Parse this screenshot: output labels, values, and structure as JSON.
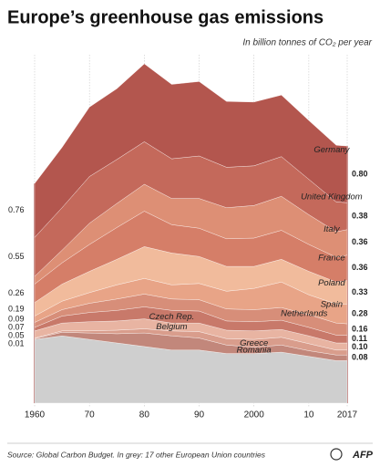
{
  "chart_data": {
    "type": "stacked_area",
    "title": "Europe’s greenhouse gas emissions",
    "subtitle": "In billion tonnes of CO₂ per year",
    "source": "Source: Global Carbon Budget. In grey: 17 other European Union countries",
    "logo": "AFP",
    "x": [
      1960,
      1965,
      1970,
      1975,
      1980,
      1985,
      1990,
      1995,
      2000,
      2005,
      2010,
      2015,
      2017
    ],
    "xlim": [
      1960,
      2017
    ],
    "xticks": [
      1960,
      {
        "value": 1970,
        "label": "70"
      },
      {
        "value": 1980,
        "label": "80"
      },
      {
        "value": 1990,
        "label": "90"
      },
      2000,
      {
        "value": 2010,
        "label": "10"
      },
      2017
    ],
    "grid": true,
    "series": [
      {
        "name": "Germany",
        "color": "#b3564e",
        "values": [
          0.76,
          0.85,
          0.98,
          1.0,
          1.1,
          1.05,
          1.05,
          0.93,
          0.9,
          0.87,
          0.83,
          0.8,
          0.8
        ],
        "value_labels": [
          "0.76",
          null,
          null,
          null,
          null,
          null,
          null,
          null,
          null,
          null,
          null,
          null,
          "0.80"
        ]
      },
      {
        "name": "United Kingdom",
        "color": "#c4695b",
        "values": [
          0.55,
          0.6,
          0.66,
          0.62,
          0.6,
          0.56,
          0.6,
          0.57,
          0.56,
          0.56,
          0.5,
          0.42,
          0.38
        ],
        "value_labels": [
          "0.55",
          null,
          null,
          null,
          null,
          null,
          null,
          null,
          null,
          null,
          null,
          null,
          "0.38"
        ]
      },
      {
        "name": "Italy",
        "color": "#dd8f75",
        "values": [
          0.11,
          0.18,
          0.3,
          0.34,
          0.38,
          0.37,
          0.42,
          0.44,
          0.46,
          0.48,
          0.42,
          0.36,
          0.36
        ],
        "value_labels": [
          null,
          null,
          null,
          null,
          null,
          null,
          null,
          null,
          null,
          null,
          null,
          null,
          "0.36"
        ]
      },
      {
        "name": "France",
        "color": "#d57e68",
        "values": [
          0.26,
          0.3,
          0.38,
          0.45,
          0.5,
          0.4,
          0.4,
          0.39,
          0.4,
          0.41,
          0.38,
          0.35,
          0.36
        ],
        "value_labels": [
          "0.26",
          null,
          null,
          null,
          null,
          null,
          null,
          null,
          null,
          null,
          null,
          null,
          "0.36"
        ]
      },
      {
        "name": "Poland",
        "color": "#f1bb9c",
        "values": [
          0.19,
          0.24,
          0.3,
          0.36,
          0.45,
          0.45,
          0.38,
          0.35,
          0.31,
          0.32,
          0.33,
          0.31,
          0.33
        ],
        "value_labels": [
          "0.19",
          null,
          null,
          null,
          null,
          null,
          null,
          null,
          null,
          null,
          null,
          null,
          "0.33"
        ]
      },
      {
        "name": "Spain",
        "color": "#e8a487",
        "values": [
          0.09,
          0.12,
          0.15,
          0.2,
          0.22,
          0.2,
          0.23,
          0.25,
          0.3,
          0.36,
          0.28,
          0.27,
          0.28
        ],
        "value_labels": [
          "0.09",
          null,
          null,
          null,
          null,
          null,
          null,
          null,
          null,
          null,
          null,
          null,
          "0.28"
        ]
      },
      {
        "name": "Netherlands",
        "color": "#d78e79",
        "values": [
          0.07,
          0.09,
          0.13,
          0.16,
          0.18,
          0.16,
          0.16,
          0.17,
          0.17,
          0.18,
          0.18,
          0.17,
          0.16
        ],
        "value_labels": [
          "0.07",
          null,
          null,
          null,
          null,
          null,
          null,
          null,
          null,
          null,
          null,
          null,
          "0.16"
        ]
      },
      {
        "name": "Czech Rep.",
        "color": "#c8796a",
        "values": [
          0.05,
          0.1,
          0.13,
          0.15,
          0.17,
          0.18,
          0.17,
          0.13,
          0.13,
          0.13,
          0.12,
          0.11,
          0.11
        ],
        "value_labels": [
          "0.05",
          null,
          null,
          null,
          null,
          null,
          null,
          null,
          null,
          null,
          null,
          null,
          "0.11"
        ]
      },
      {
        "name": "Belgium",
        "color": "#e8b4a2",
        "values": [
          0.1,
          0.11,
          0.13,
          0.13,
          0.14,
          0.11,
          0.12,
          0.12,
          0.12,
          0.11,
          0.11,
          0.1,
          0.1
        ],
        "value_labels": [
          null,
          null,
          null,
          null,
          null,
          null,
          null,
          null,
          null,
          null,
          null,
          null,
          "0.10"
        ]
      },
      {
        "name": "Greece",
        "color": "#d99d8c",
        "values": [
          0.01,
          0.02,
          0.03,
          0.05,
          0.06,
          0.07,
          0.09,
          0.09,
          0.11,
          0.11,
          0.1,
          0.07,
          0.07
        ]
      },
      {
        "name": "Romania",
        "color": "#c2877b",
        "values": [
          0.01,
          0.05,
          0.09,
          0.13,
          0.19,
          0.2,
          0.17,
          0.12,
          0.09,
          0.1,
          0.08,
          0.08,
          0.08
        ],
        "value_labels": [
          "0.01",
          null,
          null,
          null,
          null,
          null,
          null,
          null,
          null,
          null,
          null,
          null,
          "0.08"
        ]
      },
      {
        "color": "#cfcfcf",
        "values": [
          0.9,
          0.95,
          0.9,
          0.85,
          0.8,
          0.75,
          0.75,
          0.7,
          0.7,
          0.72,
          0.66,
          0.6,
          0.6
        ]
      }
    ]
  }
}
